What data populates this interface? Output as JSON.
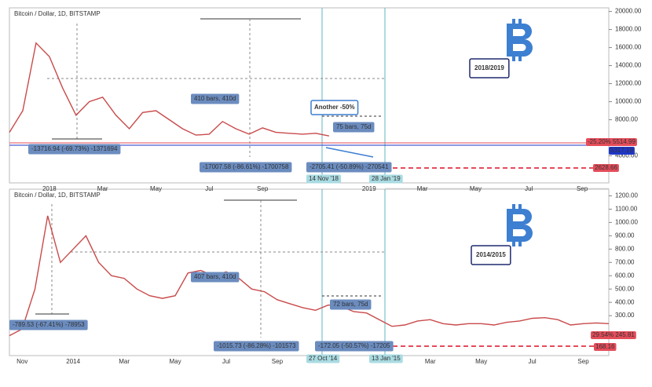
{
  "chart_data": [
    {
      "type": "line",
      "title": "Bitcoin / Dollar, 1D, BITSTAMP",
      "categories": [
        null,
        null,
        null,
        "2018",
        null,
        null,
        null,
        "Mar",
        null,
        null,
        null,
        "May",
        null,
        null,
        null,
        "Jul",
        null,
        null,
        null,
        "Sep",
        null,
        null,
        null,
        null,
        null,
        null,
        null,
        "2019",
        null,
        null,
        null,
        "Mar",
        null,
        null,
        null,
        "May",
        null,
        null,
        null,
        "Jul",
        null,
        null,
        null,
        "Sep",
        null,
        null
      ],
      "series": [
        {
          "color": "#c94a4a",
          "values": [
            6600,
            9000,
            16500,
            15000,
            11500,
            8500,
            10000,
            10500,
            8500,
            7000,
            8800,
            9000,
            8000,
            7000,
            6300,
            6400,
            7800,
            7000,
            6400,
            7100,
            6600,
            6500,
            6400,
            6500,
            6200,
            null,
            null,
            null,
            null,
            null,
            null,
            null,
            null,
            null,
            null,
            null,
            null,
            null,
            null,
            null,
            null,
            null,
            null,
            null,
            null,
            null
          ]
        }
      ],
      "ylim": [
        1000,
        20400
      ],
      "yticks": [
        {
          "value": 4000,
          "label": "4000.00"
        },
        {
          "value": 8000,
          "label": "8000.00"
        },
        {
          "value": 10000,
          "label": "10000.00"
        },
        {
          "value": 12000,
          "label": "12000.00"
        },
        {
          "value": 14000,
          "label": "14000.00"
        },
        {
          "value": 16000,
          "label": "16000.00"
        },
        {
          "value": 18000,
          "label": "18000.00"
        },
        {
          "value": 20000,
          "label": "20000.00"
        }
      ],
      "grid": false,
      "annotations": [
        "410 bars, 410d",
        "75 bars, 75d",
        "Another -50%",
        "-13716.94 (-69.73%) -1371694",
        "-17007.58 (-86.61%) -1700758",
        "-2705.41 (-50.89%) -270541",
        "14 Nov '18",
        "28 Jan '19",
        "2018/2019",
        "-25.20% 5514.99",
        "5317.19",
        "2628.66"
      ]
    },
    {
      "type": "line",
      "title": "Bitcoin / Dollar, 1D, BITSTAMP",
      "categories": [
        null,
        "Nov",
        null,
        null,
        null,
        "2014",
        null,
        null,
        null,
        "Mar",
        null,
        null,
        null,
        "May",
        null,
        null,
        null,
        "Jul",
        null,
        null,
        null,
        "Sep",
        null,
        null,
        null,
        null,
        null,
        null,
        null,
        null,
        null,
        null,
        null,
        "Mar",
        null,
        null,
        null,
        "May",
        null,
        null,
        null,
        "Jul",
        null,
        null,
        null,
        "Sep",
        null,
        null
      ],
      "series": [
        {
          "color": "#c94a4a",
          "values": [
            150,
            200,
            500,
            1050,
            700,
            800,
            900,
            700,
            600,
            580,
            500,
            450,
            430,
            450,
            620,
            640,
            600,
            630,
            580,
            500,
            480,
            420,
            390,
            360,
            340,
            380,
            370,
            330,
            320,
            270,
            220,
            230,
            260,
            270,
            240,
            230,
            240,
            240,
            230,
            250,
            260,
            280,
            285,
            270,
            230,
            240,
            245,
            240
          ]
        }
      ],
      "ylim": [
        0,
        1250
      ],
      "yticks": [
        {
          "value": 300,
          "label": "300.00"
        },
        {
          "value": 400,
          "label": "400.00"
        },
        {
          "value": 500,
          "label": "500.00"
        },
        {
          "value": 600,
          "label": "600.00"
        },
        {
          "value": 700,
          "label": "700.00"
        },
        {
          "value": 800,
          "label": "800.00"
        },
        {
          "value": 900,
          "label": "900.00"
        },
        {
          "value": 1000,
          "label": "1000.00"
        },
        {
          "value": 1100,
          "label": "1100.00"
        },
        {
          "value": 1200,
          "label": "1200.00"
        }
      ],
      "grid": false,
      "annotations": [
        "407 bars, 410d",
        "72 bars, 75d",
        "-789.53 (-67.41%) -78953",
        "-1015.73 (-86.28%) -101573",
        "-172.05 (-50.57%) -17205",
        "27 Oct '14",
        "13 Jan '15",
        "2014/2015",
        "29.54% 245.81",
        "168.16"
      ]
    }
  ]
}
